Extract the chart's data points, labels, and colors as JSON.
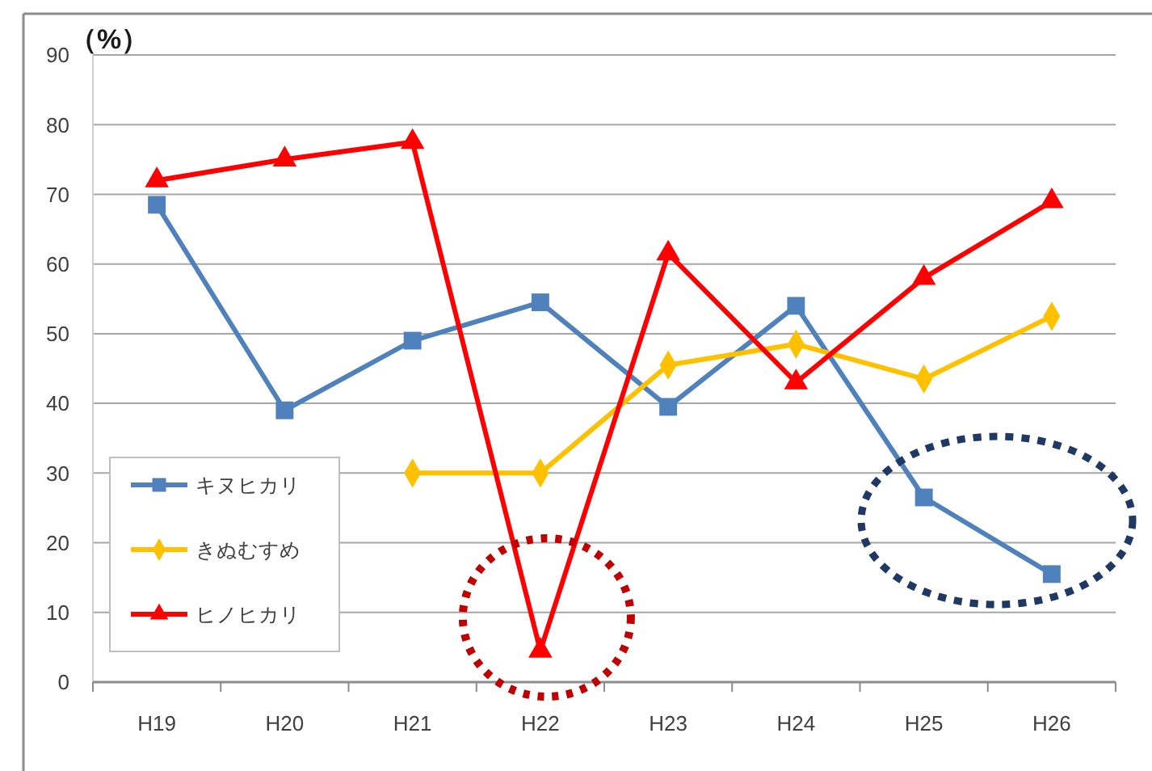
{
  "chart_data": {
    "type": "line",
    "ylabel": "（%）",
    "categories": [
      "H19",
      "H20",
      "H21",
      "H22",
      "H23",
      "H24",
      "H25",
      "H26"
    ],
    "ylim": [
      0,
      90
    ],
    "yticks": [
      0,
      10,
      20,
      30,
      40,
      50,
      60,
      70,
      80,
      90
    ],
    "grid": "y",
    "legend": "bottom left",
    "series": [
      {
        "name": "キヌヒカリ",
        "color": "#4f81bd",
        "marker": "square",
        "values": [
          68.5,
          39,
          49,
          54.5,
          39.5,
          54,
          26.5,
          15.5
        ]
      },
      {
        "name": "きぬむすめ",
        "color": "#ffc000",
        "marker": "diamond",
        "values": [
          null,
          null,
          30,
          30,
          45.5,
          48.5,
          43.5,
          52.5
        ]
      },
      {
        "name": "ヒノヒカリ",
        "color": "#ff0000",
        "marker": "triangle",
        "values": [
          72,
          75,
          77.5,
          4.5,
          61.5,
          43,
          58,
          69
        ]
      }
    ]
  }
}
